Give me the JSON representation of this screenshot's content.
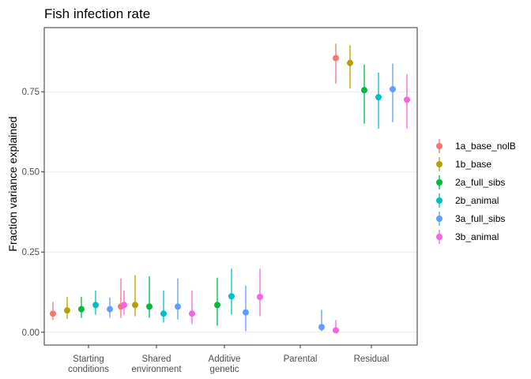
{
  "chart_data": {
    "type": "scatter",
    "subtype": "point-range (point estimate with interval, dodged by model)",
    "title": "Fish infection rate",
    "xlabel": "",
    "ylabel": "Fraction variance explained",
    "ylim": [
      -0.04,
      0.95
    ],
    "yticks": [
      0.0,
      0.25,
      0.5,
      0.75
    ],
    "ytick_labels": [
      "0.00",
      "0.25",
      "0.50",
      "0.75"
    ],
    "grid": true,
    "legend_position": "right",
    "categories": [
      [
        "Starting",
        "conditions"
      ],
      [
        "Shared",
        "environment"
      ],
      [
        "Additive",
        "genetic"
      ],
      [
        "Parental"
      ],
      [
        "Residual"
      ]
    ],
    "series": [
      {
        "name": "1a_base_nolB",
        "color": "#F8766D",
        "values": [
          0.058,
          0.08,
          null,
          null,
          0.855
        ],
        "lower": [
          0.038,
          0.045,
          null,
          null,
          0.775
        ],
        "upper": [
          0.095,
          0.168,
          null,
          null,
          0.9
        ]
      },
      {
        "name": "1b_base",
        "color": "#B79F00",
        "values": [
          0.068,
          0.085,
          null,
          null,
          0.84
        ],
        "lower": [
          0.042,
          0.05,
          null,
          null,
          0.76
        ],
        "upper": [
          0.11,
          0.178,
          null,
          null,
          0.895
        ]
      },
      {
        "name": "2a_full_sibs",
        "color": "#00BA38",
        "values": [
          0.072,
          0.08,
          0.085,
          null,
          0.755
        ],
        "lower": [
          0.045,
          0.045,
          0.02,
          null,
          0.65
        ],
        "upper": [
          0.11,
          0.175,
          0.17,
          null,
          0.835
        ]
      },
      {
        "name": "2b_animal",
        "color": "#00BFC4",
        "values": [
          0.085,
          0.058,
          0.112,
          null,
          0.733
        ],
        "lower": [
          0.055,
          0.03,
          0.055,
          null,
          0.635
        ],
        "upper": [
          0.13,
          0.13,
          0.198,
          null,
          0.81
        ]
      },
      {
        "name": "3a_full_sibs",
        "color": "#619CFF",
        "values": [
          0.072,
          0.08,
          0.062,
          0.016,
          0.758
        ],
        "lower": [
          0.045,
          0.04,
          0.003,
          0.003,
          0.655
        ],
        "upper": [
          0.108,
          0.168,
          0.145,
          0.07,
          0.838
        ]
      },
      {
        "name": "3b_animal",
        "color": "#F564E3",
        "values": [
          0.085,
          0.058,
          0.11,
          0.006,
          0.725
        ],
        "lower": [
          0.055,
          0.025,
          0.05,
          0.001,
          0.635
        ],
        "upper": [
          0.13,
          0.13,
          0.198,
          0.038,
          0.805
        ]
      }
    ]
  },
  "colors": {
    "panel_border": "#333333",
    "grid": "#ebebeb",
    "tick": "#333333"
  }
}
